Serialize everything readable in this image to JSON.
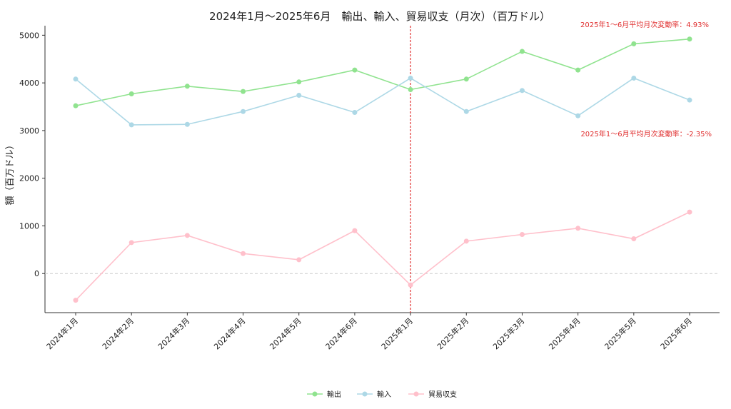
{
  "chart_data": {
    "type": "line",
    "title": "2024年1月～2025年6月　輸出、輸入、貿易収支（月次）（百万ドル）",
    "xlabel": "",
    "ylabel": "額（百万ドル）",
    "ylim": [
      -820,
      5200
    ],
    "yticks": [
      0,
      1000,
      2000,
      3000,
      4000,
      5000
    ],
    "categories": [
      "2024年1月",
      "2024年2月",
      "2024年3月",
      "2024年4月",
      "2024年5月",
      "2024年6月",
      "2025年1月",
      "2025年2月",
      "2025年3月",
      "2025年4月",
      "2025年5月",
      "2025年6月"
    ],
    "series": [
      {
        "name": "輸出",
        "color": "#90e38f",
        "values": [
          3520,
          3770,
          3930,
          3820,
          4020,
          4270,
          3860,
          4080,
          4660,
          4270,
          4820,
          4920
        ]
      },
      {
        "name": "輸入",
        "color": "#add8e6",
        "values": [
          4080,
          3120,
          3130,
          3400,
          3740,
          3380,
          4100,
          3400,
          3840,
          3310,
          4100,
          3640
        ]
      },
      {
        "name": "貿易収支",
        "color": "#ffc0cb",
        "values": [
          -560,
          650,
          800,
          420,
          290,
          900,
          -240,
          680,
          820,
          950,
          730,
          1290
        ]
      }
    ],
    "vline": {
      "at": "2025年1月",
      "color": "#e03030",
      "style": "dashed"
    },
    "hline": {
      "at": 0,
      "color": "#cccccc",
      "style": "dashed"
    },
    "annotations": [
      {
        "text": "2025年1～6月平均月次変動率：4.93%",
        "color": "#e03030",
        "position": "top-right"
      },
      {
        "text": "2025年1～6月平均月次変動率：-2.35%",
        "color": "#e03030",
        "position": "right"
      }
    ],
    "legend": "bottom-center",
    "grid": false
  }
}
